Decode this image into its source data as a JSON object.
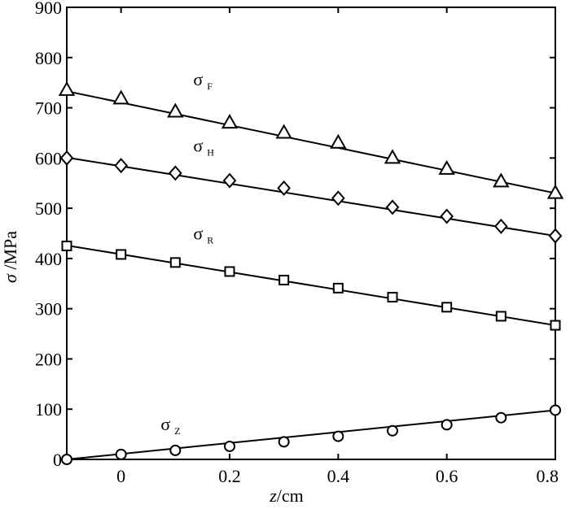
{
  "chart_data": {
    "type": "line",
    "title": "",
    "xlabel": {
      "var": "z",
      "unit": "/cm"
    },
    "ylabel": {
      "var": "σ",
      "unit": " /MPa"
    },
    "xlim": [
      -0.1,
      0.8
    ],
    "ylim": [
      0,
      900
    ],
    "xticks": [
      0,
      0.2,
      0.4,
      0.6,
      0.8
    ],
    "xtick_labels": [
      "0",
      "0.2",
      "0.4",
      "0.6",
      "0.8"
    ],
    "yticks": [
      0,
      100,
      200,
      300,
      400,
      500,
      600,
      700,
      800,
      900
    ],
    "ytick_labels": [
      "0",
      "100",
      "200",
      "300",
      "400",
      "500",
      "600",
      "700",
      "800",
      "900"
    ],
    "grid": false,
    "x": [
      -0.1,
      0,
      0.1,
      0.2,
      0.3,
      0.4,
      0.5,
      0.6,
      0.7,
      0.8
    ],
    "series": [
      {
        "name": "σF",
        "symbol": "σ",
        "subscript": "F",
        "marker": "triangle",
        "values": [
          735,
          718,
          692,
          670,
          650,
          630,
          600,
          578,
          553,
          530
        ],
        "fit": [
          733,
          530
        ]
      },
      {
        "name": "σH",
        "symbol": "σ",
        "subscript": "H",
        "marker": "diamond",
        "values": [
          600,
          585,
          570,
          555,
          540,
          520,
          502,
          484,
          464,
          445
        ],
        "fit": [
          601,
          445
        ]
      },
      {
        "name": "σR",
        "symbol": "σ",
        "subscript": "R",
        "marker": "square",
        "values": [
          425,
          408,
          392,
          374,
          357,
          341,
          323,
          303,
          285,
          267
        ],
        "fit": [
          426,
          267
        ]
      },
      {
        "name": "σZ",
        "symbol": "σ",
        "subscript": "Z",
        "marker": "circle",
        "values": [
          0,
          10,
          18,
          26,
          35,
          46,
          57,
          69,
          83,
          98
        ],
        "fit": [
          0,
          98
        ]
      }
    ]
  }
}
